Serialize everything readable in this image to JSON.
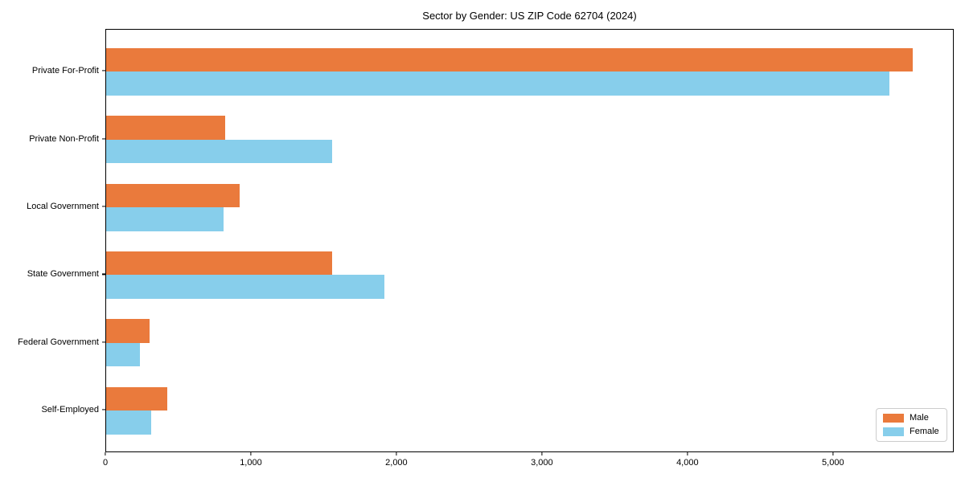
{
  "chart_data": {
    "type": "bar",
    "orientation": "horizontal",
    "title": "Sector by Gender: US ZIP Code 62704 (2024)",
    "categories": [
      "Private For-Profit",
      "Private Non-Profit",
      "Local Government",
      "State Government",
      "Federal Government",
      "Self-Employed"
    ],
    "series": [
      {
        "name": "Male",
        "color": "#EA7A3C",
        "values": [
          5540,
          820,
          915,
          1555,
          300,
          420
        ]
      },
      {
        "name": "Female",
        "color": "#87CEEB",
        "values": [
          5380,
          1550,
          805,
          1910,
          230,
          310
        ]
      }
    ],
    "xlabel": "",
    "ylabel": "",
    "xlim": [
      0,
      5830
    ],
    "x_ticks": [
      {
        "value": 0,
        "label": "0"
      },
      {
        "value": 1000,
        "label": "1,000"
      },
      {
        "value": 2000,
        "label": "2,000"
      },
      {
        "value": 3000,
        "label": "3,000"
      },
      {
        "value": 4000,
        "label": "4,000"
      },
      {
        "value": 5000,
        "label": "5,000"
      }
    ],
    "grid": false,
    "legend_position": "lower right",
    "plot_border_color": "#000000",
    "background_color": "#ffffff"
  }
}
